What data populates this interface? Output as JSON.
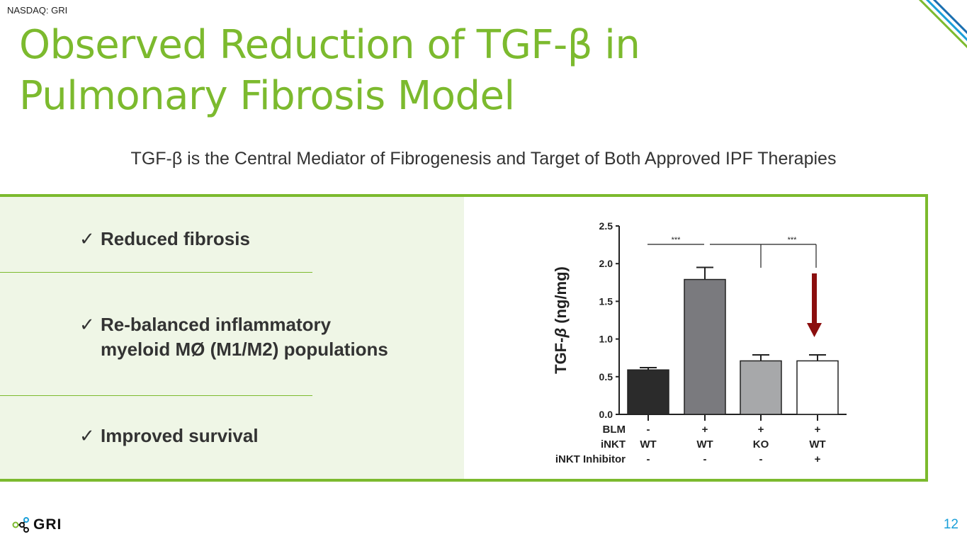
{
  "header": {
    "ticker": "NASDAQ: GRI",
    "title_line1": "Observed Reduction of TGF-β in",
    "title_line2": "Pulmonary Fibrosis Model"
  },
  "subtitle": "TGF-β is the Central Mediator of Fibrogenesis and Target of Both Approved IPF Therapies",
  "bullets": [
    {
      "check": "✓",
      "line1": "Reduced fibrosis",
      "line2": ""
    },
    {
      "check": "✓",
      "line1": "Re-balanced inflammatory",
      "line2": "myeloid MØ (M1/M2) populations"
    },
    {
      "check": "✓",
      "line1": "Improved survival",
      "line2": ""
    }
  ],
  "chart_data": {
    "type": "bar",
    "ylabel_prefix": "TGF-",
    "ylabel_beta": "β",
    "ylabel_suffix": " (ng/mg)",
    "ylim": [
      0,
      2.5
    ],
    "yticks": [
      "0.0",
      "0.5",
      "1.0",
      "1.5",
      "2.0",
      "2.5"
    ],
    "values": [
      0.59,
      1.79,
      0.71,
      0.71
    ],
    "errors": [
      0.03,
      0.16,
      0.08,
      0.08
    ],
    "bar_colors": [
      "#2b2b2b",
      "#7a7a7e",
      "#a7a8aa",
      "#ffffff"
    ],
    "row_labels": [
      "BLM",
      "iNKT",
      "iNKT Inhibitor"
    ],
    "rows": [
      [
        "-",
        "+",
        "+",
        "+"
      ],
      [
        "WT",
        "WT",
        "KO",
        "WT"
      ],
      [
        "-",
        "-",
        "-",
        "+"
      ]
    ],
    "significance": [
      "***",
      "***"
    ],
    "arrow_color": "#8b0e0e"
  },
  "footer": {
    "logo_text": "GRI",
    "page_number": "12"
  },
  "colors": {
    "accent_green": "#7cba2e",
    "panel_bg": "#eff6e6",
    "page_number": "#1a9fd9"
  }
}
